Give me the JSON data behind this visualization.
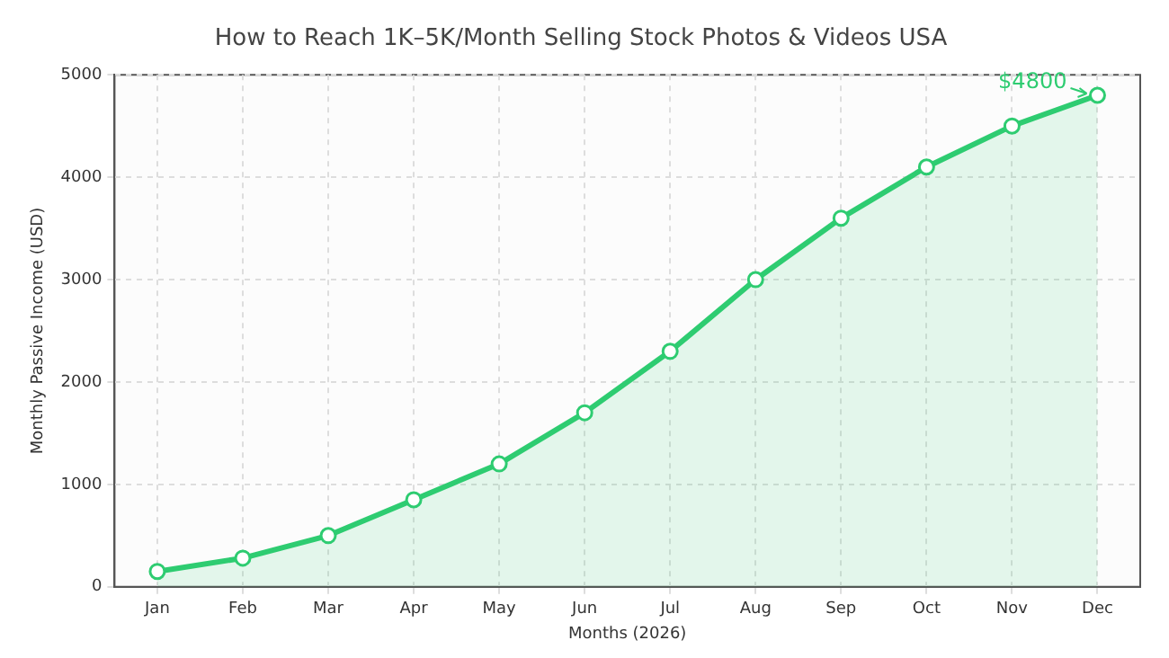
{
  "chart_data": {
    "type": "area",
    "title": "How to Reach 1K–5K/Month Selling Stock Photos & Videos USA",
    "xlabel": "Months (2026)",
    "ylabel": "Monthly Passive Income (USD)",
    "categories": [
      "Jan",
      "Feb",
      "Mar",
      "Apr",
      "May",
      "Jun",
      "Jul",
      "Aug",
      "Sep",
      "Oct",
      "Nov",
      "Dec"
    ],
    "series": [
      {
        "color": "#2ecc71",
        "values": [
          150,
          280,
          500,
          850,
          1200,
          1700,
          2300,
          3000,
          3600,
          4100,
          4500,
          4800
        ]
      }
    ],
    "ylim": [
      0,
      5000
    ],
    "yticks": [
      0,
      1000,
      2000,
      3000,
      4000,
      5000
    ],
    "grid": true,
    "legend": false,
    "marker": "circle",
    "line_style": "solid",
    "annotations": [
      {
        "text": "$4800",
        "x": "Dec",
        "y": 4800
      }
    ]
  }
}
